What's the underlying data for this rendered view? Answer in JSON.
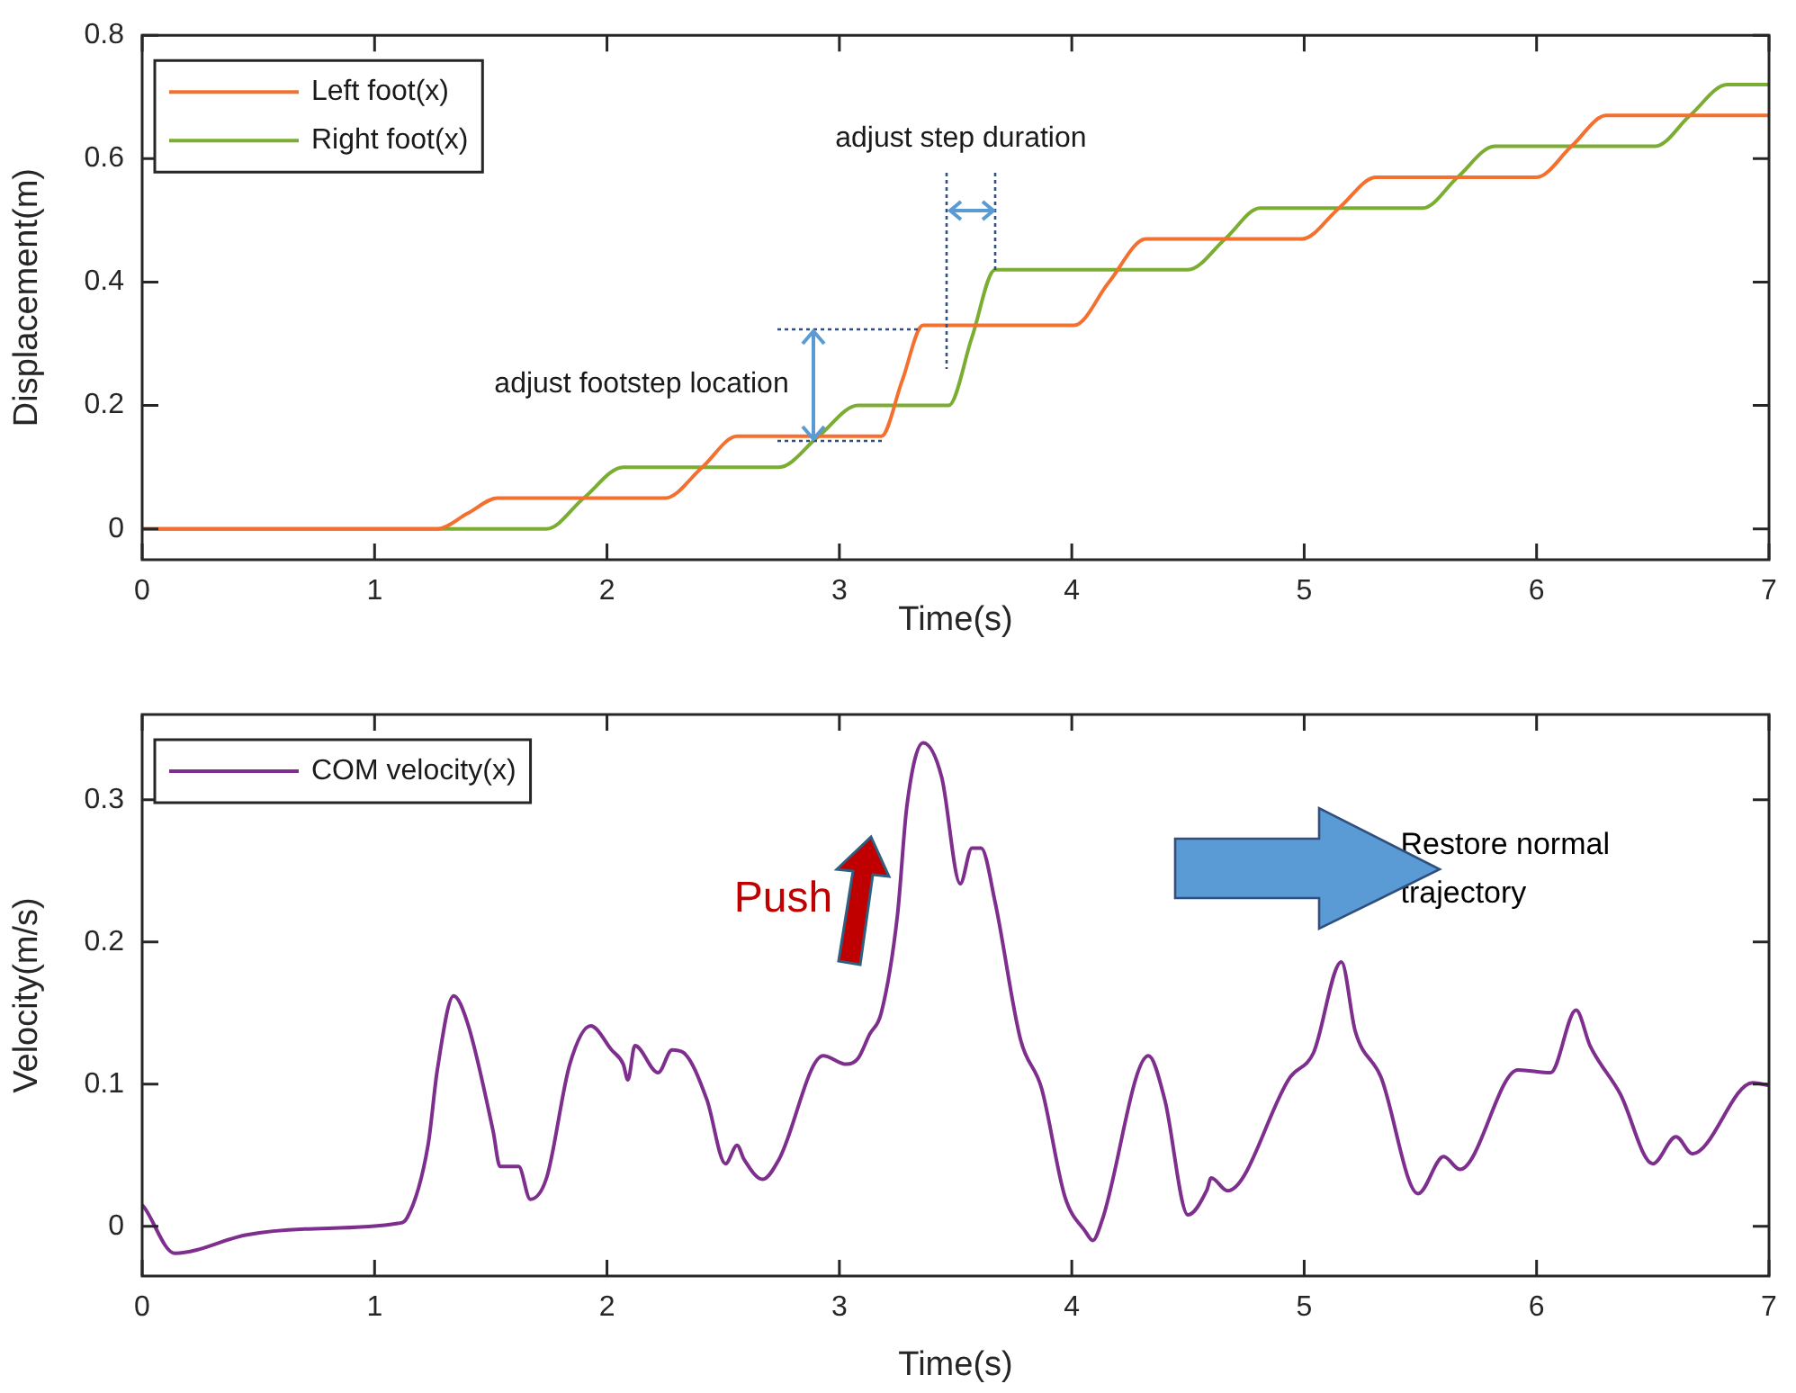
{
  "chart_data": [
    {
      "type": "line",
      "xlabel": "Time(s)",
      "ylabel": "Displacement(m)",
      "xlim": [
        0,
        7
      ],
      "xticks": [
        0,
        1,
        2,
        3,
        4,
        5,
        6,
        7
      ],
      "ylim": [
        -0.05,
        0.8
      ],
      "yticks": [
        0,
        0.2,
        0.4,
        0.6,
        0.8
      ],
      "grid": false,
      "legend": "top left",
      "series": [
        {
          "name": "Left foot(x)",
          "color": "#f4702e",
          "x": [
            0,
            1.27,
            1.4,
            1.53,
            2.25,
            2.41,
            2.56,
            3.18,
            3.27,
            3.36,
            4.01,
            4.16,
            4.32,
            4.99,
            5.15,
            5.31,
            6.0,
            6.15,
            6.3,
            7
          ],
          "values": [
            0,
            0,
            0.025,
            0.05,
            0.05,
            0.1,
            0.15,
            0.15,
            0.24,
            0.33,
            0.33,
            0.4,
            0.47,
            0.47,
            0.52,
            0.57,
            0.57,
            0.62,
            0.67,
            0.67
          ]
        },
        {
          "name": "Right foot(x)",
          "color": "#7aad32",
          "x": [
            0,
            1.74,
            1.9,
            2.07,
            2.74,
            2.91,
            3.08,
            3.47,
            3.57,
            3.67,
            4.5,
            4.66,
            4.81,
            5.51,
            5.66,
            5.82,
            6.51,
            6.66,
            6.82,
            7
          ],
          "values": [
            0,
            0,
            0.05,
            0.1,
            0.1,
            0.15,
            0.2,
            0.2,
            0.31,
            0.42,
            0.42,
            0.47,
            0.52,
            0.52,
            0.57,
            0.62,
            0.62,
            0.67,
            0.72,
            0.72
          ]
        }
      ],
      "annotations": [
        "adjust footstep location",
        {
          "text": "adjust step duration",
          "x": 3.67,
          "y": 0.42
        }
      ]
    },
    {
      "type": "line",
      "xlabel": "Time(s)",
      "ylabel": "Velocity(m/s)",
      "xlim": [
        0,
        7
      ],
      "xticks": [
        0,
        1,
        2,
        3,
        4,
        5,
        6,
        7
      ],
      "ylim": [
        -0.035,
        0.36
      ],
      "yticks": [
        0,
        0.1,
        0.2,
        0.3
      ],
      "grid": false,
      "legend": "top left",
      "series": [
        {
          "name": "COM velocity(x)",
          "color": "#7e2f8e",
          "x": [
            0,
            0.01,
            0.14,
            0.45,
            0.7,
            1.1,
            1.14,
            1.23,
            1.27,
            1.34,
            1.4,
            1.51,
            1.54,
            1.62,
            1.67,
            1.74,
            1.84,
            1.93,
            2.02,
            2.07,
            2.09,
            2.12,
            2.22,
            2.28,
            2.33,
            2.43,
            2.51,
            2.56,
            2.59,
            2.67,
            2.74,
            2.93,
            3.03,
            3.08,
            3.13,
            3.18,
            3.25,
            3.29,
            3.36,
            3.44,
            3.52,
            3.57,
            3.61,
            3.67,
            3.78,
            3.87,
            3.97,
            4.06,
            4.09,
            4.13,
            4.33,
            4.4,
            4.5,
            4.58,
            4.6,
            4.67,
            4.94,
            5.04,
            5.16,
            5.22,
            5.33,
            5.49,
            5.6,
            5.67,
            5.92,
            6.06,
            6.17,
            6.23,
            6.36,
            6.5,
            6.6,
            6.67,
            6.93,
            7
          ],
          "values": [
            0.015,
            0.013,
            -0.019,
            -0.006,
            -0.002,
            0.002,
            0.006,
            0.057,
            0.11,
            0.162,
            0.143,
            0.067,
            0.042,
            0.042,
            0.019,
            0.034,
            0.114,
            0.141,
            0.124,
            0.114,
            0.103,
            0.127,
            0.108,
            0.124,
            0.122,
            0.089,
            0.044,
            0.057,
            0.047,
            0.033,
            0.047,
            0.12,
            0.114,
            0.118,
            0.135,
            0.15,
            0.219,
            0.295,
            0.34,
            0.316,
            0.241,
            0.266,
            0.266,
            0.228,
            0.131,
            0.097,
            0.021,
            -0.004,
            -0.01,
            0.004,
            0.12,
            0.089,
            0.008,
            0.025,
            0.034,
            0.025,
            0.105,
            0.122,
            0.186,
            0.137,
            0.105,
            0.023,
            0.049,
            0.04,
            0.11,
            0.108,
            0.152,
            0.127,
            0.093,
            0.044,
            0.063,
            0.051,
            0.101,
            0.099
          ]
        }
      ],
      "annotations": [
        "Push",
        "Restore normal trajectory"
      ]
    }
  ]
}
